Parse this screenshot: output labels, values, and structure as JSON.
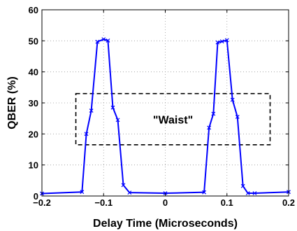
{
  "chart_data": {
    "type": "line",
    "xlabel": "Delay Time (Microseconds)",
    "ylabel": "QBER (%)",
    "xlim": [
      -0.2,
      0.2
    ],
    "ylim": [
      0,
      60
    ],
    "x_ticks": [
      -0.2,
      -0.1,
      0,
      0.1,
      0.2
    ],
    "x_tick_labels": [
      "−0.2",
      "−0.1",
      "0",
      "0.1",
      "0.2"
    ],
    "y_ticks": [
      0,
      10,
      20,
      30,
      40,
      50,
      60
    ],
    "y_tick_labels": [
      "0",
      "10",
      "20",
      "30",
      "40",
      "50",
      "60"
    ],
    "grid": true,
    "series": [
      {
        "color": "#0000ff",
        "marker": "x",
        "x": [
          -0.2,
          -0.135,
          -0.128,
          -0.12,
          -0.11,
          -0.1,
          -0.093,
          -0.085,
          -0.077,
          -0.068,
          -0.058,
          0.0,
          0.063,
          0.071,
          0.078,
          0.085,
          0.092,
          0.1,
          0.109,
          0.117,
          0.126,
          0.134,
          0.145,
          0.2
        ],
        "y": [
          0.8,
          1.3,
          20.0,
          27.5,
          49.7,
          50.5,
          50.1,
          28.5,
          24.5,
          3.5,
          1.1,
          0.9,
          1.2,
          22.0,
          26.5,
          49.5,
          49.8,
          50.2,
          31.0,
          25.5,
          3.2,
          0.9,
          0.9,
          1.3
        ]
      }
    ],
    "annotations": [
      {
        "text": "\"Waist\"",
        "box_x": [
          -0.145,
          0.17
        ],
        "box_y": [
          16.5,
          33.0
        ],
        "box_style": "dashed"
      }
    ]
  }
}
